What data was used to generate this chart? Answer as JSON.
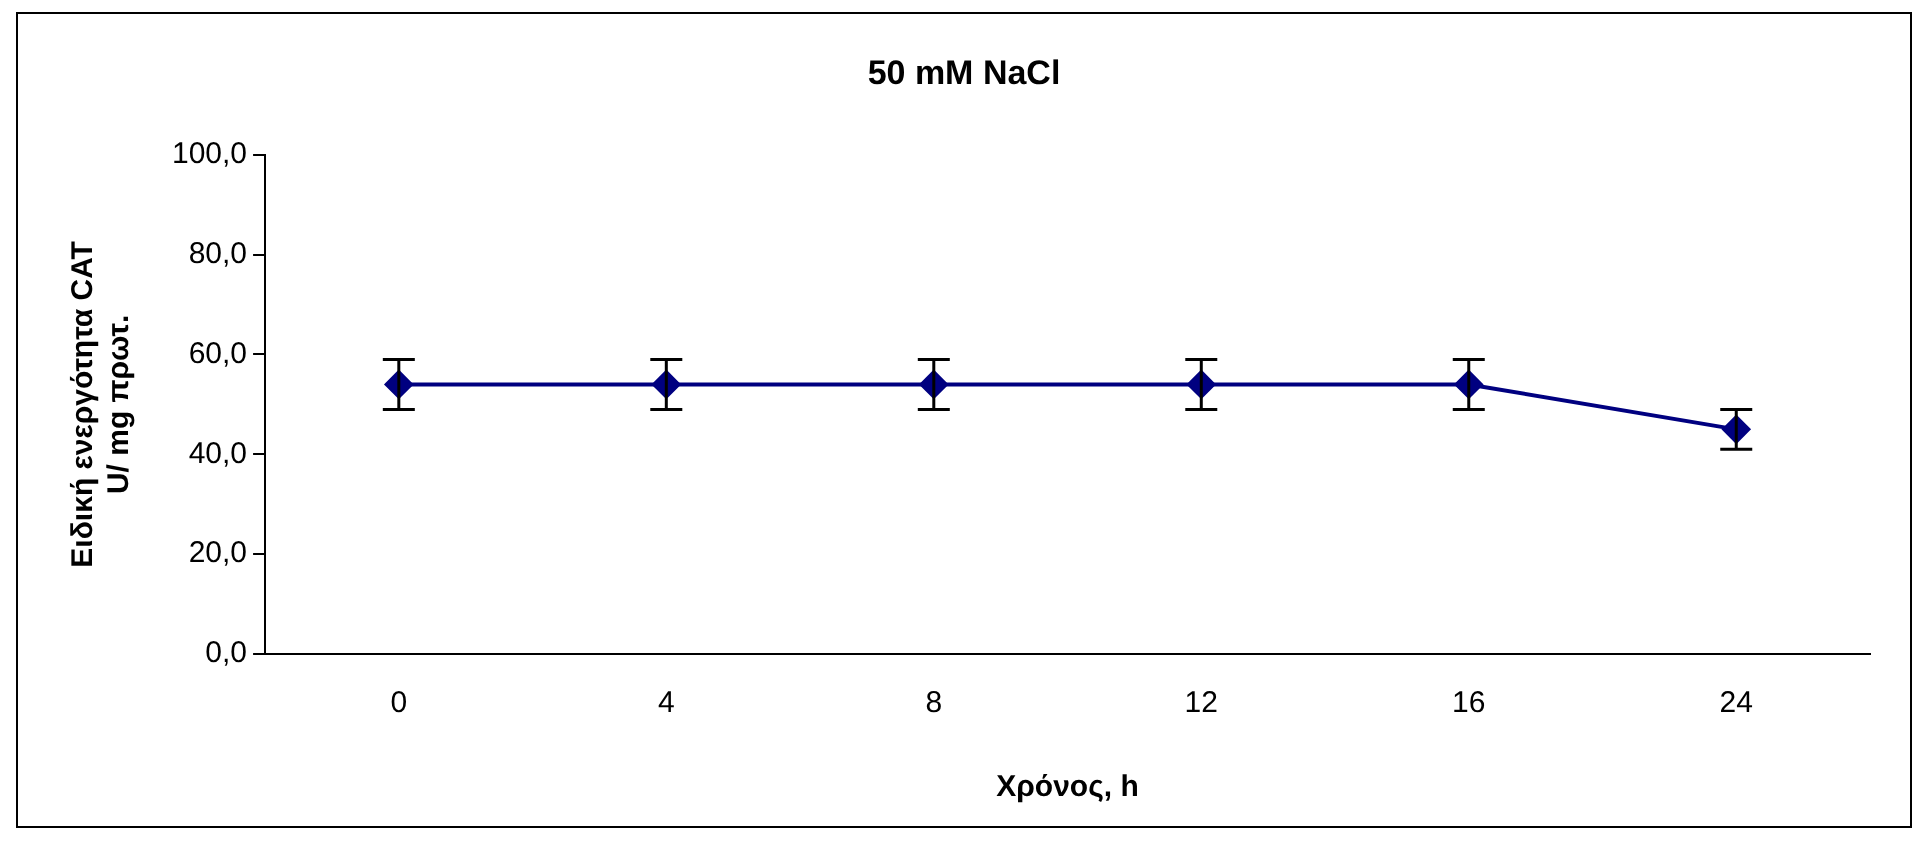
{
  "chart_data": {
    "type": "line",
    "title": "50 mM NaCl",
    "xlabel": "Χρόνος, h",
    "ylabel": "Ειδική ενεργότητα CAT\nU/ mg πρωτ.",
    "categories": [
      "0",
      "4",
      "8",
      "12",
      "16",
      "24"
    ],
    "series": [
      {
        "color": "#000080",
        "values": [
          54,
          54,
          54,
          54,
          54,
          45
        ],
        "errors": [
          5,
          5,
          5,
          5,
          5,
          4
        ]
      }
    ],
    "ylim": [
      0,
      100
    ],
    "yticks": [
      {
        "value": 0,
        "label": "0,0"
      },
      {
        "value": 20,
        "label": "20,0"
      },
      {
        "value": 40,
        "label": "40,0"
      },
      {
        "value": 60,
        "label": "60,0"
      },
      {
        "value": 80,
        "label": "80,0"
      },
      {
        "value": 100,
        "label": "100,0"
      }
    ],
    "grid": false,
    "legend": false,
    "marker": "diamond",
    "line_style": "solid"
  }
}
